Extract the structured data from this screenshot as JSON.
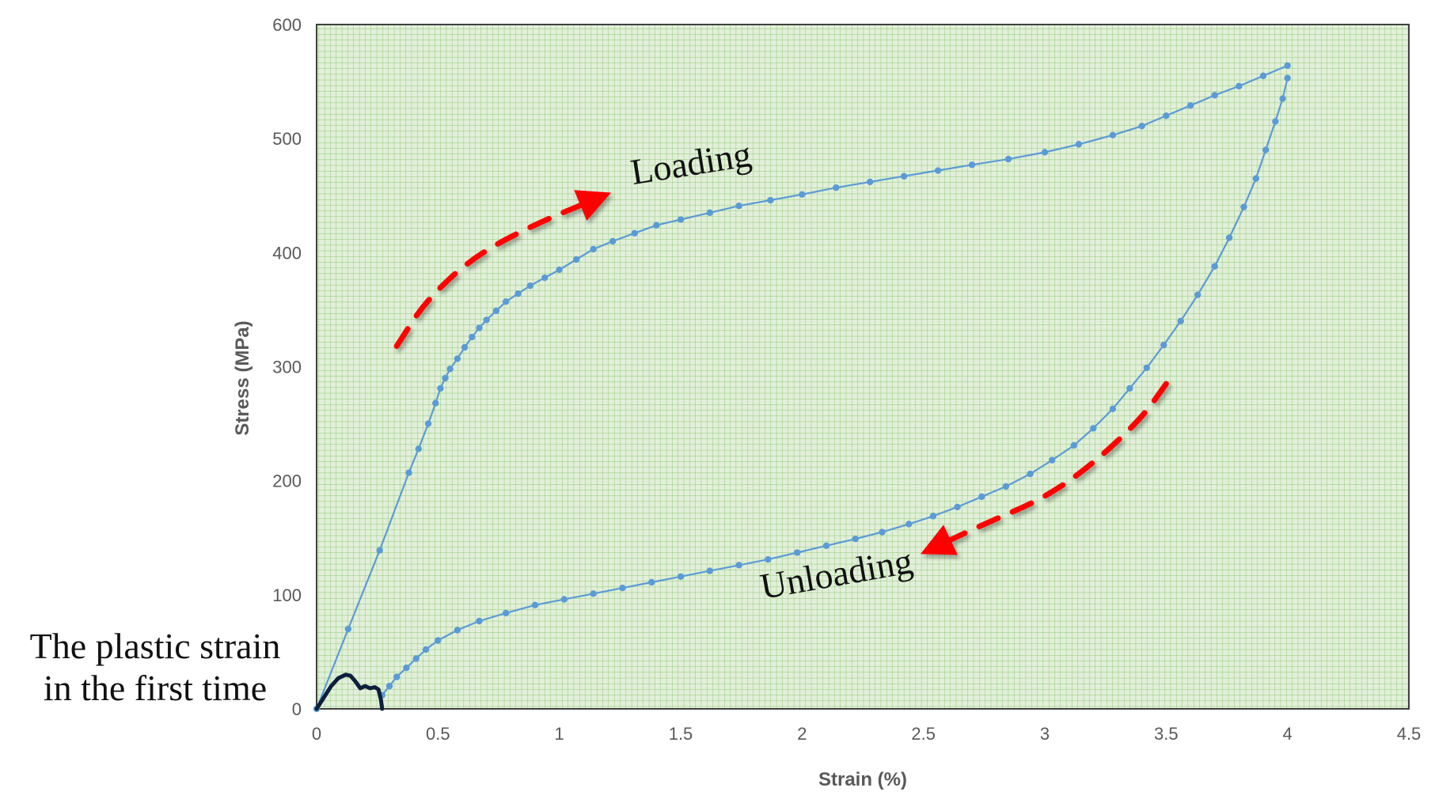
{
  "chart_data": {
    "type": "line",
    "xlabel": "Strain (%)",
    "ylabel": "Stress (MPa)",
    "xlim": [
      0,
      4.5
    ],
    "ylim": [
      0,
      600
    ],
    "xticks": [
      {
        "value": 0,
        "label": "0"
      },
      {
        "value": 0.5,
        "label": "0.5"
      },
      {
        "value": 1,
        "label": "1"
      },
      {
        "value": 1.5,
        "label": "1.5"
      },
      {
        "value": 2,
        "label": "2"
      },
      {
        "value": 2.5,
        "label": "2.5"
      },
      {
        "value": 3,
        "label": "3"
      },
      {
        "value": 3.5,
        "label": "3.5"
      },
      {
        "value": 4,
        "label": "4"
      },
      {
        "value": 4.5,
        "label": "4.5"
      }
    ],
    "yticks": [
      {
        "value": 0,
        "label": "0"
      },
      {
        "value": 100,
        "label": "100"
      },
      {
        "value": 200,
        "label": "200"
      },
      {
        "value": 300,
        "label": "300"
      },
      {
        "value": 400,
        "label": "400"
      },
      {
        "value": 500,
        "label": "500"
      },
      {
        "value": 600,
        "label": "600"
      }
    ],
    "grid": true,
    "series": [
      {
        "name": "Loading",
        "color": "#5b9bd5",
        "markers": true,
        "x": [
          0,
          0.13,
          0.26,
          0.38,
          0.42,
          0.46,
          0.49,
          0.51,
          0.53,
          0.55,
          0.58,
          0.61,
          0.64,
          0.67,
          0.7,
          0.74,
          0.78,
          0.83,
          0.88,
          0.94,
          1.0,
          1.07,
          1.14,
          1.22,
          1.31,
          1.4,
          1.5,
          1.62,
          1.74,
          1.87,
          2.0,
          2.14,
          2.28,
          2.42,
          2.56,
          2.7,
          2.85,
          3.0,
          3.14,
          3.28,
          3.4,
          3.5,
          3.6,
          3.7,
          3.8,
          3.9,
          4.0
        ],
        "y": [
          0,
          70,
          139,
          207,
          228,
          250,
          268,
          281,
          290,
          298,
          307,
          317,
          326,
          334,
          341,
          349,
          357,
          364,
          371,
          378,
          385,
          394,
          403,
          410,
          417,
          424,
          429,
          435,
          441,
          446,
          451,
          457,
          462,
          467,
          472,
          477,
          482,
          488,
          495,
          503,
          511,
          520,
          529,
          538,
          546,
          555,
          564
        ]
      },
      {
        "name": "Unloading",
        "color": "#5b9bd5",
        "markers": true,
        "x": [
          4.0,
          3.98,
          3.95,
          3.91,
          3.87,
          3.82,
          3.76,
          3.7,
          3.63,
          3.56,
          3.49,
          3.42,
          3.35,
          3.28,
          3.2,
          3.12,
          3.03,
          2.94,
          2.84,
          2.74,
          2.64,
          2.54,
          2.44,
          2.33,
          2.22,
          2.1,
          1.98,
          1.86,
          1.74,
          1.62,
          1.5,
          1.38,
          1.26,
          1.14,
          1.02,
          0.9,
          0.78,
          0.67,
          0.58,
          0.5,
          0.45,
          0.41,
          0.37,
          0.33,
          0.3,
          0.27
        ],
        "y": [
          553,
          535,
          515,
          490,
          465,
          440,
          413,
          388,
          363,
          340,
          319,
          299,
          281,
          263,
          246,
          231,
          218,
          206,
          195,
          186,
          177,
          169,
          162,
          155,
          149,
          143,
          137,
          131,
          126,
          121,
          116,
          111,
          106,
          101,
          96,
          91,
          84,
          77,
          69,
          60,
          52,
          44,
          36,
          28,
          20,
          12
        ]
      },
      {
        "name": "The plastic strain in the first time",
        "color": "#0d1f3c",
        "markers": false,
        "x": [
          0,
          0.03,
          0.06,
          0.09,
          0.12,
          0.14,
          0.16,
          0.18,
          0.2,
          0.22,
          0.24,
          0.255,
          0.265,
          0.27
        ],
        "y": [
          0,
          10,
          20,
          27,
          30,
          29,
          24,
          18,
          20,
          18,
          19,
          17,
          8,
          0
        ]
      }
    ],
    "annotations": [
      {
        "text": "Loading",
        "x": 1.55,
        "y": 468,
        "rotation": -9,
        "arrow": "red-dashed-up"
      },
      {
        "text": "Unloading",
        "x": 2.15,
        "y": 108,
        "rotation": -10,
        "arrow": "red-dashed-down"
      },
      {
        "text_lines": [
          "The plastic strain",
          "in the first time"
        ]
      }
    ],
    "arrows": [
      {
        "name": "loading-arrow",
        "color": "#ff0000",
        "x": [
          0.33,
          0.45,
          0.65,
          0.9,
          1.15
        ],
        "y": [
          318,
          358,
          397,
          425,
          447
        ]
      },
      {
        "name": "unloading-arrow",
        "color": "#ff0000",
        "x": [
          3.5,
          3.4,
          3.2,
          3.0,
          2.75,
          2.55
        ],
        "y": [
          285,
          255,
          215,
          185,
          162,
          142
        ]
      }
    ]
  }
}
